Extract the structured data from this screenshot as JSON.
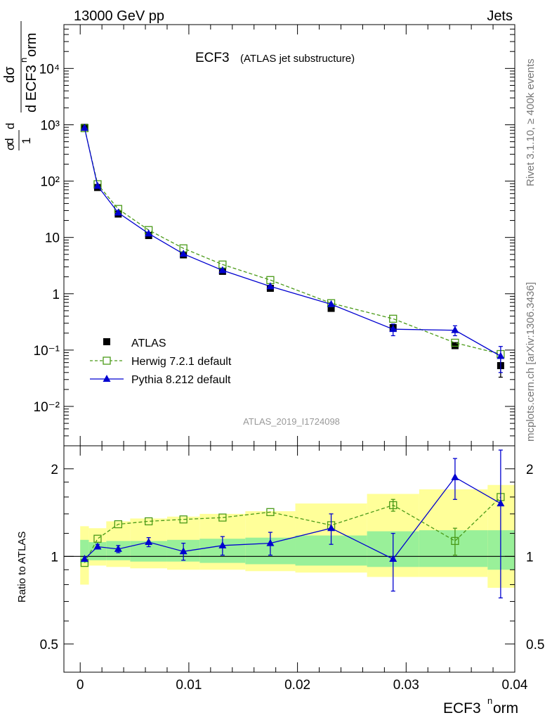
{
  "header": {
    "left": "13000 GeV pp",
    "right": "Jets"
  },
  "side_labels": {
    "rivet": "Rivet 3.1.10, ≥ 400k events",
    "mcplots": "mcplots.cern.ch [arXiv:1306.3436]"
  },
  "chart_data": [
    {
      "type": "scatter",
      "title": "ECF3",
      "subtitle": "(ATLAS jet substructure)",
      "analysis_label": "ATLAS_2019_I1724098",
      "ylabel_parts": {
        "frac_num": "1",
        "frac_den": "σ",
        "d_num": "dσ",
        "d_den": "d ECF3",
        "sup": "n",
        "tail": "orm"
      },
      "yscale": "log",
      "ylim": [
        0.002,
        60000
      ],
      "xlim": [
        -0.0015,
        0.04
      ],
      "y_tick_labels": [
        "10⁻²",
        "10⁻¹",
        "1",
        "10",
        "10²",
        "10³",
        "10⁴"
      ],
      "y_tick_values": [
        0.01,
        0.1,
        1,
        10,
        100,
        1000,
        10000
      ],
      "x": [
        0.0004,
        0.0016,
        0.0035,
        0.0063,
        0.0095,
        0.0131,
        0.0175,
        0.0231,
        0.0288,
        0.0345,
        0.0387
      ],
      "series": [
        {
          "name": "ATLAS",
          "color": "#000000",
          "marker": "square-filled",
          "values": [
            900,
            77,
            26,
            10.8,
            4.9,
            2.5,
            1.25,
            0.55,
            0.25,
            0.12,
            0.053
          ],
          "err": [
            0,
            0,
            0,
            0,
            0,
            0,
            0,
            0,
            0,
            0,
            0.02
          ]
        },
        {
          "name": "Herwig 7.2.1 default",
          "color": "#4a9a18",
          "marker": "square-open",
          "line": "dashed",
          "values": [
            870,
            88,
            32,
            13.5,
            6.4,
            3.3,
            1.75,
            0.68,
            0.36,
            0.135,
            0.085
          ],
          "err": [
            0,
            0,
            0,
            0,
            0,
            0,
            0,
            0,
            0,
            0,
            0
          ]
        },
        {
          "name": "Pythia 8.212 default",
          "color": "#0000d0",
          "marker": "triangle-filled",
          "line": "solid",
          "values": [
            880,
            82,
            27.5,
            11.7,
            5.1,
            2.6,
            1.35,
            0.65,
            0.235,
            0.225,
            0.078
          ],
          "err": [
            0,
            0,
            0,
            0,
            0,
            0,
            0,
            0,
            0.055,
            0.045,
            0.038
          ]
        }
      ],
      "legend_position": "lower-left"
    },
    {
      "type": "scatter",
      "ylabel": "Ratio to ATLAS",
      "xlabel": "ECF3",
      "xlabel_sup": "n",
      "xlabel_tail": "orm",
      "yscale": "log",
      "ylim": [
        0.4,
        2.4
      ],
      "xlim": [
        -0.0015,
        0.04
      ],
      "y_tick_labels": [
        "0.5",
        "1",
        "2"
      ],
      "y_tick_values": [
        0.5,
        1,
        2
      ],
      "x_tick_labels": [
        "0",
        "0.01",
        "0.02",
        "0.03",
        "0.04"
      ],
      "x_tick_values": [
        0,
        0.01,
        0.02,
        0.03,
        0.04
      ],
      "bins": [
        0,
        0.0008,
        0.0024,
        0.0046,
        0.008,
        0.011,
        0.0152,
        0.0198,
        0.0264,
        0.0312,
        0.0375,
        0.04
      ],
      "band_green": [
        [
          0.95,
          1.14
        ],
        [
          0.97,
          1.12
        ],
        [
          0.97,
          1.13
        ],
        [
          0.96,
          1.13
        ],
        [
          0.96,
          1.14
        ],
        [
          0.95,
          1.15
        ],
        [
          0.94,
          1.16
        ],
        [
          0.93,
          1.18
        ],
        [
          0.92,
          1.22
        ],
        [
          0.92,
          1.23
        ],
        [
          0.9,
          1.23
        ]
      ],
      "band_yellow": [
        [
          0.8,
          1.27
        ],
        [
          0.93,
          1.25
        ],
        [
          0.92,
          1.32
        ],
        [
          0.91,
          1.35
        ],
        [
          0.9,
          1.37
        ],
        [
          0.9,
          1.4
        ],
        [
          0.89,
          1.43
        ],
        [
          0.88,
          1.52
        ],
        [
          0.85,
          1.64
        ],
        [
          0.85,
          1.7
        ],
        [
          0.78,
          1.76
        ]
      ],
      "x": [
        0.0004,
        0.0016,
        0.0035,
        0.0063,
        0.0095,
        0.0131,
        0.0175,
        0.0231,
        0.0288,
        0.0345,
        0.0387
      ],
      "series": [
        {
          "name": "Herwig 7.2.1 default",
          "color": "#4a9a18",
          "marker": "square-open",
          "line": "dashed",
          "values": [
            0.95,
            1.15,
            1.29,
            1.32,
            1.34,
            1.36,
            1.42,
            1.28,
            1.5,
            1.13,
            1.6
          ],
          "err": [
            0,
            0,
            0,
            0,
            0,
            0,
            0,
            0,
            0.07,
            0.12,
            0
          ]
        },
        {
          "name": "Pythia 8.212 default",
          "color": "#0000d0",
          "marker": "triangle-filled",
          "line": "solid",
          "values": [
            0.98,
            1.08,
            1.06,
            1.12,
            1.04,
            1.09,
            1.11,
            1.25,
            0.98,
            1.87,
            1.52
          ],
          "err": [
            0,
            0.02,
            0.03,
            0.04,
            0.07,
            0.08,
            0.1,
            0.15,
            0.22,
            0.3,
            0.8
          ]
        }
      ]
    }
  ]
}
